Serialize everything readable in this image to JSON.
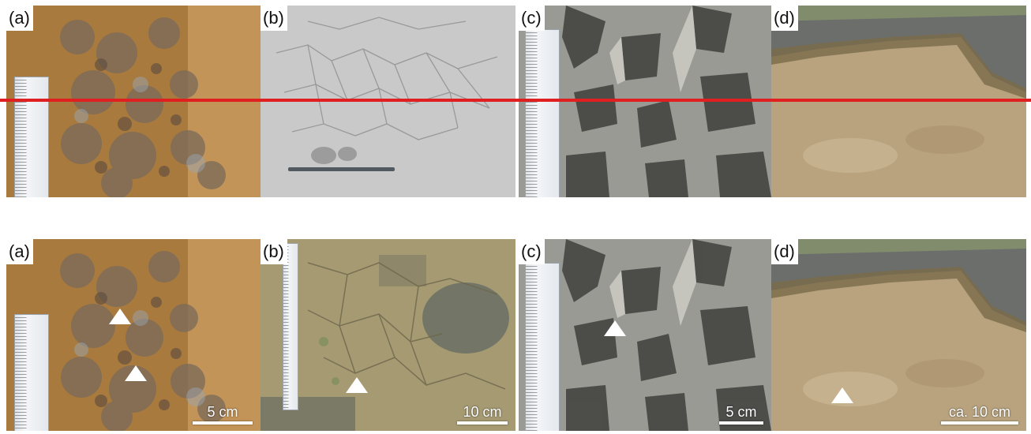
{
  "top_row": {
    "panels": [
      {
        "label": "(a)"
      },
      {
        "label": "(b)"
      },
      {
        "label": "(c)"
      },
      {
        "label": "(d)"
      }
    ]
  },
  "bottom_row": {
    "panels": [
      {
        "label": "(a)",
        "scale": "5 cm"
      },
      {
        "label": "(b)",
        "scale": "10 cm"
      },
      {
        "label": "(c)",
        "scale": "5 cm"
      },
      {
        "label": "(d)",
        "scale": "ca. 10 cm"
      }
    ]
  },
  "colors": {
    "separator_line": "#e02020",
    "panel_a": "#b08040",
    "panel_b_top": "#c8c8c8",
    "panel_b_bottom": "#9c8f66",
    "panel_c": "#8a8a86",
    "panel_d": "#b8a080"
  }
}
